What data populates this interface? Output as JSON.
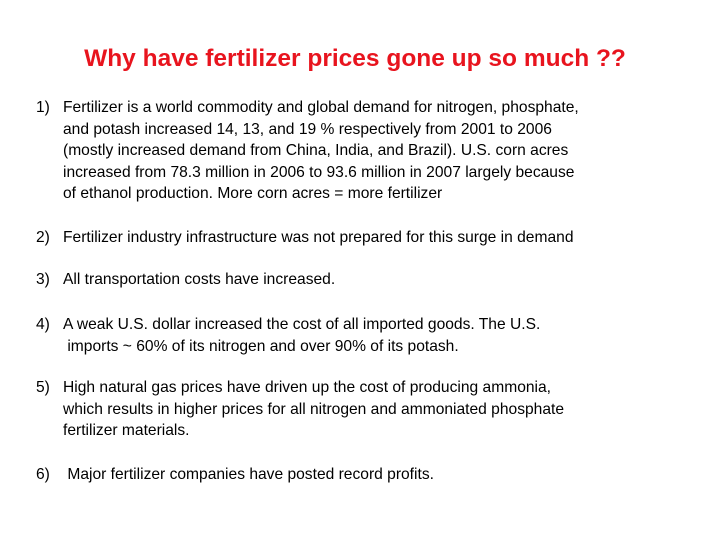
{
  "slide": {
    "title": "Why have fertilizer prices gone up so much ??",
    "items": [
      {
        "number": "1)",
        "lines": [
          "Fertilizer is a world commodity and global demand for nitrogen, phosphate,",
          "and potash increased 14, 13, and 19 % respectively from 2001 to 2006",
          "(mostly increased demand from China, India, and Brazil).  U.S. corn acres",
          "increased from 78.3 million in 2006 to 93.6 million in 2007 largely because",
          "of ethanol production. More corn acres =  more fertilizer"
        ]
      },
      {
        "number": "2)",
        "lines": [
          "Fertilizer industry infrastructure was not prepared for this surge in demand"
        ]
      },
      {
        "number": "3)",
        "lines": [
          "All transportation costs have increased."
        ]
      },
      {
        "number": "4)",
        "lines": [
          "A weak U.S. dollar increased the cost of all imported goods. The U.S.",
          " imports ~ 60% of its nitrogen and over 90% of its potash."
        ]
      },
      {
        "number": "5)",
        "lines": [
          "High natural gas prices have driven up the cost of producing ammonia,",
          "which results in higher prices for all nitrogen and ammoniated phosphate",
          "fertilizer materials."
        ]
      },
      {
        "number": "6)",
        "lines": [
          " Major fertilizer companies have posted record profits."
        ]
      }
    ]
  },
  "colors": {
    "title": "#e8141e",
    "text": "#000000",
    "background": "#ffffff"
  }
}
